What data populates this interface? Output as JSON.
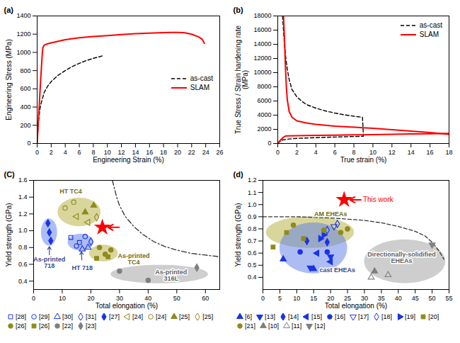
{
  "chart_data": [
    {
      "type": "line",
      "title": "(a)",
      "xlabel": "Engineering Strain (%)",
      "ylabel": "Engineering Stress (MPa)",
      "xlim": [
        0,
        26
      ],
      "xticks": [
        0,
        2,
        4,
        6,
        8,
        10,
        12,
        14,
        16,
        18,
        20,
        22,
        24,
        26
      ],
      "ylim": [
        0,
        1400
      ],
      "yticks": [
        0,
        200,
        400,
        600,
        800,
        1000,
        1200,
        1400
      ],
      "grid": false,
      "legend": "right",
      "series": [
        {
          "name": "as-cast",
          "color": "#000000",
          "line_style": "dashed",
          "x": [
            0,
            0.2,
            0.4,
            0.6,
            1,
            1.5,
            2,
            3,
            4,
            5,
            6,
            7,
            8,
            9,
            9.4
          ],
          "values": [
            0,
            250,
            380,
            450,
            560,
            630,
            680,
            750,
            800,
            845,
            880,
            910,
            935,
            955,
            965
          ]
        },
        {
          "name": "SLAM",
          "color": "#ff0000",
          "line_style": "solid",
          "x": [
            0,
            0.3,
            0.5,
            0.7,
            0.8,
            1,
            1.5,
            2,
            4,
            6,
            8,
            10,
            12,
            14,
            16,
            18,
            19,
            20,
            21,
            22,
            23,
            23.5,
            23.8
          ],
          "values": [
            0,
            420,
            700,
            950,
            1050,
            1080,
            1095,
            1105,
            1140,
            1160,
            1175,
            1185,
            1195,
            1205,
            1212,
            1218,
            1220,
            1220,
            1215,
            1200,
            1170,
            1145,
            1100
          ]
        }
      ]
    },
    {
      "type": "line",
      "title": "(b)",
      "xlabel": "True strain (%)",
      "ylabel": "True Stress / Strain hardening rate (MPa)",
      "xlim": [
        0,
        18
      ],
      "xticks": [
        0,
        2,
        4,
        6,
        8,
        10,
        12,
        14,
        16,
        18
      ],
      "ylim": [
        0,
        18000
      ],
      "yticks": [
        0,
        2000,
        4000,
        6000,
        8000,
        10000,
        12000,
        14000,
        16000,
        18000
      ],
      "grid": false,
      "legend": "top-right",
      "series": [
        {
          "name": "as-cast",
          "color": "#000000",
          "line_style": "dashed",
          "curves": [
            {
              "x": [
                0.5,
                0.6,
                0.7,
                0.85,
                1,
                1.2,
                1.5,
                2,
                2.5,
                3,
                4,
                5,
                6,
                7,
                8,
                8.9,
                8.95,
                9
              ],
              "values": [
                18000,
                16000,
                14000,
                12000,
                10500,
                9000,
                7600,
                6600,
                6000,
                5500,
                5000,
                4600,
                4300,
                4050,
                3850,
                3700,
                2500,
                1100
              ]
            },
            {
              "x": [
                0,
                0.3,
                0.5,
                1,
                1.5,
                2,
                3,
                4,
                5,
                6,
                7,
                8,
                9
              ],
              "values": [
                0,
                380,
                500,
                600,
                670,
                720,
                780,
                830,
                870,
                910,
                950,
                985,
                1020
              ]
            }
          ]
        },
        {
          "name": "SLAM",
          "color": "#ff0000",
          "line_style": "solid",
          "curves": [
            {
              "x": [
                0.6,
                0.7,
                0.8,
                0.9,
                1,
                1.2,
                1.5,
                2,
                3,
                4,
                6,
                8,
                10,
                12,
                14,
                16,
                18
              ],
              "values": [
                18000,
                15000,
                11000,
                8000,
                6200,
                4500,
                3700,
                3200,
                2900,
                2700,
                2450,
                2300,
                2150,
                1950,
                1750,
                1550,
                1300
              ]
            },
            {
              "x": [
                0,
                0.3,
                0.6,
                0.8,
                1,
                2,
                4,
                6,
                8,
                10,
                12,
                14,
                16,
                18
              ],
              "values": [
                0,
                500,
                900,
                1050,
                1080,
                1100,
                1140,
                1180,
                1220,
                1260,
                1300,
                1340,
                1380,
                1420
              ]
            }
          ]
        }
      ]
    },
    {
      "type": "scatter",
      "title": "(C)",
      "xlabel": "Total elongation (%)",
      "ylabel": "Yield strength (GPa)",
      "xlim": [
        0,
        65
      ],
      "xticks": [
        0,
        10,
        20,
        30,
        40,
        50,
        60
      ],
      "ylim": [
        0.3,
        1.6
      ],
      "yticks": [
        0.4,
        0.6,
        0.8,
        {
          "value": 1,
          "label": "1.0"
        },
        1.2,
        1.4,
        1.6
      ],
      "grid": false,
      "legend": "bottom",
      "series": [
        {
          "name": "[28]",
          "color": "#1a33e6",
          "marker": "open-square",
          "x": [
            13,
            16
          ],
          "values": [
            0.92,
            0.86
          ]
        },
        {
          "name": "[29]",
          "color": "#1a33e6",
          "marker": "open-circle",
          "x": [
            18,
            15
          ],
          "values": [
            0.93,
            0.82
          ]
        },
        {
          "name": "[30]",
          "color": "#1a33e6",
          "marker": "open-triangle",
          "x": [
            19,
            17
          ],
          "values": [
            0.8,
            0.78
          ]
        },
        {
          "name": "[31]",
          "color": "#1a33e6",
          "marker": "open-diamond",
          "x": [
            20
          ],
          "values": [
            0.87
          ]
        },
        {
          "name": "[27]",
          "color": "#1a33e6",
          "marker": "diamond",
          "x": [
            5,
            5.5,
            6
          ],
          "values": [
            1.09,
            0.98,
            0.88
          ]
        },
        {
          "name": "[24]",
          "color": "#8f8a1c",
          "marker": "open-triangle-left",
          "x": [
            15,
            19
          ],
          "values": [
            1.17,
            1.1
          ]
        },
        {
          "name": "[24]",
          "color": "#8f8a1c",
          "marker": "open-circle",
          "x": [
            11,
            14
          ],
          "values": [
            1.27,
            1.34
          ]
        },
        {
          "name": "[25]",
          "color": "#8f8a1c",
          "marker": "triangle",
          "x": [
            18,
            21
          ],
          "values": [
            1.22,
            1.3
          ]
        },
        {
          "name": "[25]",
          "color": "#8f8a1c",
          "marker": "open-diamond",
          "x": [
            22
          ],
          "values": [
            1.16
          ]
        },
        {
          "name": "[26]",
          "color": "#8f8a1c",
          "marker": "circle",
          "x": [
            23,
            27,
            25
          ],
          "values": [
            0.8,
            0.77,
            0.72
          ]
        },
        {
          "name": "[26]",
          "color": "#8f8a1c",
          "marker": "square",
          "x": [
            26,
            22
          ],
          "values": [
            0.69,
            0.67
          ]
        },
        {
          "name": "[22]",
          "color": "#7f7f7f",
          "marker": "circle",
          "x": [
            30,
            40
          ],
          "values": [
            0.52,
            0.41
          ]
        },
        {
          "name": "[23]",
          "color": "#7f7f7f",
          "marker": "diamond",
          "x": [
            57
          ],
          "values": [
            0.56
          ]
        }
      ],
      "regions": [
        {
          "label": "HT TC4",
          "color": "#b3ae3a",
          "center": [
            16,
            1.22
          ],
          "radii": [
            7.5,
            0.17
          ],
          "label_x": 13,
          "label_y": 1.47
        },
        {
          "label": "HT 718",
          "color": "#5b7be8",
          "center": [
            16.5,
            0.86
          ],
          "radii": [
            4.5,
            0.1
          ],
          "label_x": 17,
          "label_y": 0.56
        },
        {
          "label": "As-printed 718",
          "color": "#5b7be8",
          "center": [
            5.5,
            0.98
          ],
          "radii": [
            2.8,
            0.16
          ],
          "label_x": 5.5,
          "label_y": 0.62
        },
        {
          "label": "As-printed TC4",
          "color": "#b3ae3a",
          "center": [
            24.5,
            0.73
          ],
          "radii": [
            5,
            0.1
          ],
          "label_x": 35,
          "label_y": 0.66
        },
        {
          "label": "As-printed 316L",
          "color": "#9e9e9e",
          "center": [
            44,
            0.48
          ],
          "radii": [
            17,
            0.11
          ],
          "label_x": 48,
          "label_y": 0.47
        }
      ],
      "boundary": {
        "color": "#333333",
        "line_style": "dashdot",
        "x": [
          27.5,
          29,
          30,
          32,
          35,
          38,
          42,
          46,
          50,
          55,
          60,
          65
        ],
        "values": [
          1.6,
          1.4,
          1.3,
          1.17,
          1.05,
          0.96,
          0.87,
          0.81,
          0.77,
          0.73,
          0.71,
          0.69
        ]
      },
      "highlight": {
        "x": 24,
        "y": 1.04,
        "marker": "star",
        "color": "#ff0000"
      }
    },
    {
      "type": "scatter",
      "title": "(d)",
      "xlabel": "Total elongation (%)",
      "ylabel": "Yield strength (GPa)",
      "xlim": [
        0,
        55
      ],
      "xticks": [
        0,
        5,
        10,
        15,
        20,
        25,
        30,
        35,
        40,
        45,
        50,
        55
      ],
      "ylim": [
        0.3,
        1.2
      ],
      "yticks": [
        0.4,
        0.5,
        0.6,
        0.7,
        0.8,
        0.9,
        {
          "value": 1,
          "label": "1.0"
        },
        1.1,
        1.2
      ],
      "grid": false,
      "legend": "bottom",
      "series": [
        {
          "name": "[6]",
          "color": "#1a33e6",
          "marker": "triangle",
          "x": [
            6,
            15
          ],
          "values": [
            0.55,
            0.47
          ]
        },
        {
          "name": "[13]",
          "color": "#1a33e6",
          "marker": "triangle-down",
          "x": [
            14,
            20
          ],
          "values": [
            0.48,
            0.57
          ]
        },
        {
          "name": "[14]",
          "color": "#1a33e6",
          "marker": "diamond",
          "x": [
            13,
            19
          ],
          "values": [
            0.7,
            0.69
          ]
        },
        {
          "name": "[15]",
          "color": "#1a33e6",
          "marker": "triangle-left",
          "x": [
            20,
            16
          ],
          "values": [
            0.53,
            0.6
          ]
        },
        {
          "name": "[16]",
          "color": "#1a33e6",
          "marker": "circle",
          "x": [
            11,
            19
          ],
          "values": [
            0.61,
            0.61
          ]
        },
        {
          "name": "[17]",
          "color": "#1a33e6",
          "marker": "open-triangle-down",
          "x": [
            21
          ],
          "values": [
            0.82
          ]
        },
        {
          "name": "[18]",
          "color": "#1a33e6",
          "marker": "open-diamond",
          "x": [
            22,
            19
          ],
          "values": [
            0.84,
            0.79
          ]
        },
        {
          "name": "[19]",
          "color": "#1a33e6",
          "marker": "triangle-right",
          "x": [
            17,
            18
          ],
          "values": [
            0.72,
            0.75
          ]
        },
        {
          "name": "[20]",
          "color": "#8f8a1c",
          "marker": "square",
          "x": [
            3,
            7,
            12
          ],
          "values": [
            0.65,
            0.77,
            0.72
          ]
        },
        {
          "name": "[21]",
          "color": "#8f8a1c",
          "marker": "circle",
          "x": [
            9,
            23,
            18,
            25
          ],
          "values": [
            0.83,
            0.77,
            0.79,
            0.8
          ]
        },
        {
          "name": "[10]",
          "color": "#7f7f7f",
          "marker": "triangle",
          "x": [
            33
          ],
          "values": [
            0.45
          ]
        },
        {
          "name": "[11]",
          "color": "#7f7f7f",
          "marker": "open-triangle",
          "x": [
            37,
            32
          ],
          "values": [
            0.42,
            0.4
          ]
        },
        {
          "name": "[12]",
          "color": "#7f7f7f",
          "marker": "triangle-down",
          "x": [
            50
          ],
          "values": [
            0.67
          ]
        }
      ],
      "regions": [
        {
          "label": "AM EHEAs",
          "color": "#b3ae3a",
          "center": [
            14,
            0.77
          ],
          "radii": [
            13,
            0.13
          ],
          "label_x": 20,
          "label_y": 0.92
        },
        {
          "label": "cast EHEAs",
          "color": "#5b7be8",
          "center": [
            15,
            0.64
          ],
          "radii": [
            10,
            0.21
          ],
          "label_x": 22,
          "label_y": 0.46
        },
        {
          "label": "Directionally-solidified EHEAs",
          "color": "#9e9e9e",
          "center": [
            42,
            0.53
          ],
          "radii": [
            12,
            0.18
          ],
          "label_x": 41,
          "label_y": 0.56
        }
      ],
      "boundary": {
        "color": "#333333",
        "line_style": "dashed",
        "x": [
          0,
          10,
          20,
          30,
          35,
          40,
          45,
          48,
          50,
          52,
          53.5
        ],
        "values": [
          0.9,
          0.9,
          0.89,
          0.87,
          0.85,
          0.82,
          0.78,
          0.74,
          0.69,
          0.62,
          0.55
        ]
      },
      "highlight": {
        "x": 24,
        "y": 1.04,
        "marker": "star",
        "color": "#ff0000",
        "label": "This work"
      }
    }
  ]
}
